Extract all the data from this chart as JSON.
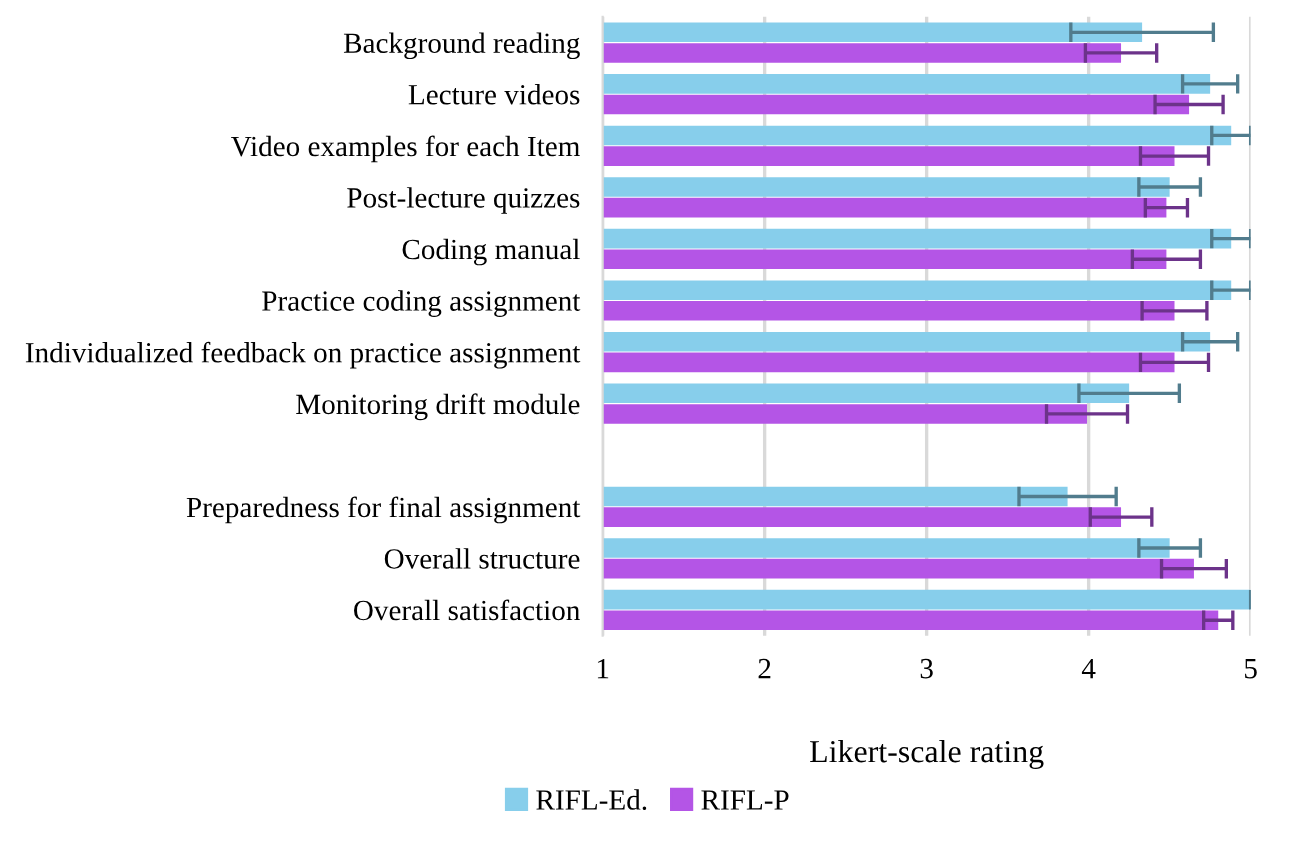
{
  "chart_data": {
    "type": "bar",
    "orientation": "horizontal",
    "xlabel": "Likert-scale rating",
    "categories": [
      "Background reading",
      "Lecture videos",
      "Video examples for each Item",
      "Post-lecture quizzes",
      "Coding manual",
      "Practice coding assignment",
      "Individualized feedback on practice assignment",
      "Monitoring drift module",
      null,
      "Preparedness for final assignment",
      "Overall structure",
      "Overall satisfaction"
    ],
    "series": [
      {
        "name": "RIFL-Ed.",
        "color": "#87ceeb",
        "values": [
          4.33,
          4.75,
          4.88,
          4.5,
          4.88,
          4.88,
          4.75,
          4.25,
          null,
          3.87,
          4.5,
          5.0
        ],
        "errors": [
          0.44,
          0.17,
          0.12,
          0.19,
          0.12,
          0.12,
          0.17,
          0.31,
          null,
          0.3,
          0.19,
          0
        ]
      },
      {
        "name": "RIFL-P",
        "color": "#b455e6",
        "values": [
          4.2,
          4.62,
          4.53,
          4.48,
          4.48,
          4.53,
          4.53,
          3.99,
          null,
          4.2,
          4.65,
          4.8
        ],
        "errors": [
          0.22,
          0.21,
          0.21,
          0.13,
          0.21,
          0.2,
          0.21,
          0.25,
          null,
          0.19,
          0.2,
          0.09
        ]
      }
    ],
    "xlim": [
      1,
      5
    ],
    "xticks": [
      1,
      2,
      3,
      4,
      5
    ],
    "grid": "x",
    "legend": "bottom"
  }
}
